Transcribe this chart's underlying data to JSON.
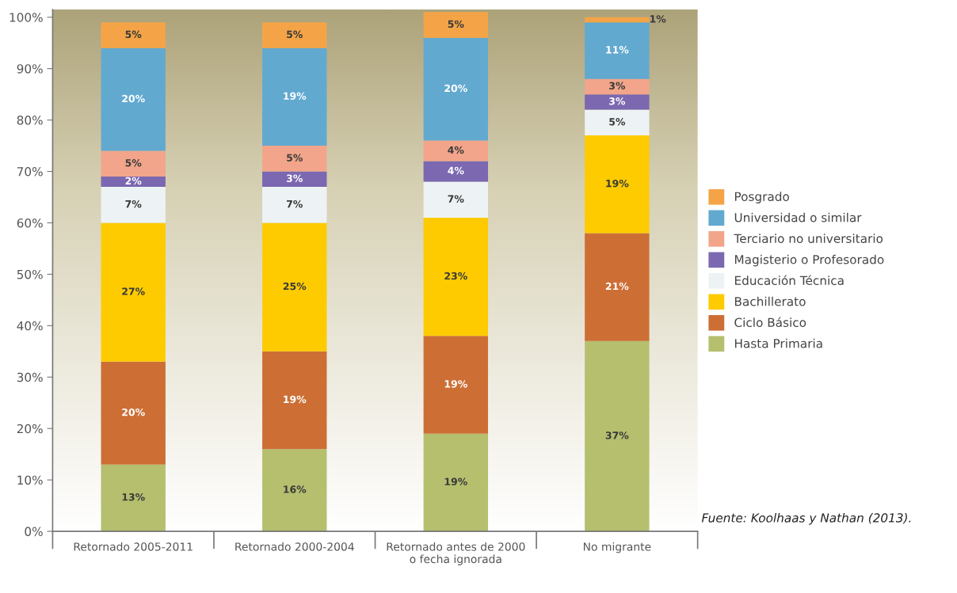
{
  "chart_data": {
    "type": "bar",
    "stacked": true,
    "legend": "right",
    "grid": false,
    "categories": [
      "Retornado 2005-2011",
      "Retornado 2000-2004",
      "Retornado antes de 2000\no fecha ignorada",
      "No migrante"
    ],
    "ylim": [
      0,
      101.5
    ],
    "yticks": [
      {
        "value": 0,
        "label": "0%"
      },
      {
        "value": 10,
        "label": "10%"
      },
      {
        "value": 20,
        "label": "20%"
      },
      {
        "value": 30,
        "label": "30%"
      },
      {
        "value": 40,
        "label": "40%"
      },
      {
        "value": 50,
        "label": "50%"
      },
      {
        "value": 60,
        "label": "60%"
      },
      {
        "value": 70,
        "label": "70%"
      },
      {
        "value": 80,
        "label": "80%"
      },
      {
        "value": 90,
        "label": "90%"
      },
      {
        "value": 100,
        "label": "100%"
      }
    ],
    "series": [
      {
        "name": "Hasta Primaria",
        "color": "#b5bf6e",
        "values": [
          13,
          16,
          19,
          37
        ],
        "value_labels": [
          "13%",
          "16%",
          "19%",
          "37%"
        ]
      },
      {
        "name": "Ciclo Básico",
        "color": "#cd6f35",
        "values": [
          20,
          19,
          19,
          21
        ],
        "value_labels": [
          "20%",
          "19%",
          "19%",
          "21%"
        ]
      },
      {
        "name": "Bachillerato",
        "color": "#fdcb00",
        "values": [
          27,
          25,
          23,
          19
        ],
        "value_labels": [
          "27%",
          "25%",
          "23%",
          "19%"
        ]
      },
      {
        "name": "Educación Técnica",
        "color": "#edf3f4",
        "values": [
          7,
          7,
          7,
          5
        ],
        "value_labels": [
          "7%",
          "7%",
          "7%",
          "5%"
        ]
      },
      {
        "name": "Magisterio o Profesorado",
        "color": "#7b68b0",
        "values": [
          2,
          3,
          4,
          3
        ],
        "value_labels": [
          "2%",
          "3%",
          "4%",
          "3%"
        ]
      },
      {
        "name": "Terciario no universitario",
        "color": "#f2a58a",
        "values": [
          5,
          5,
          4,
          3
        ],
        "value_labels": [
          "5%",
          "5%",
          "4%",
          "3%"
        ]
      },
      {
        "name": "Universidad o similar",
        "color": "#62a9d0",
        "values": [
          20,
          19,
          20,
          11
        ],
        "value_labels": [
          "20%",
          "19%",
          "20%",
          "11%"
        ]
      },
      {
        "name": "Posgrado",
        "color": "#f4a447",
        "values": [
          5,
          5,
          5,
          1
        ],
        "value_labels": [
          "5%",
          "5%",
          "5%",
          "1%"
        ]
      }
    ],
    "annotations": [
      "Fuente: Koolhaas y Nathan (2013)."
    ]
  }
}
